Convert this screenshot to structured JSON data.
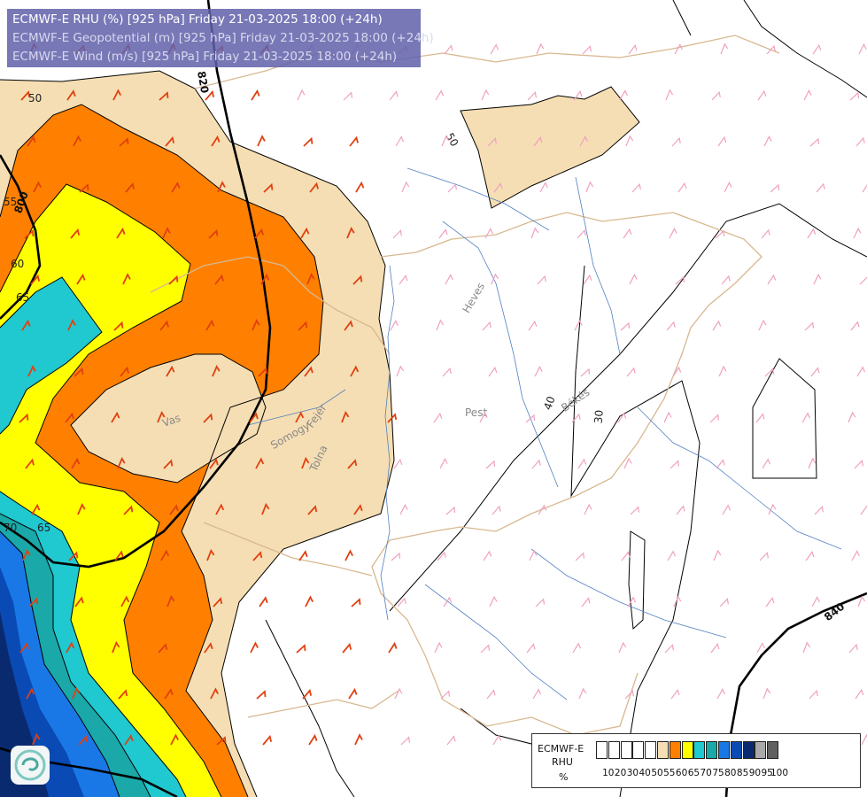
{
  "header": {
    "line1": "ECMWF-E RHU (%) [925 hPa] Friday 21-03-2025 18:00 (+24h)",
    "line2": "ECMWF-E Geopotential (m) [925 hPa] Friday 21-03-2025 18:00 (+24h)",
    "line3": "ECMWF-E Wind (m/s) [925 hPa] Friday 21-03-2025 18:00 (+24h)"
  },
  "legend": {
    "title1": "ECMWF-E",
    "title2": "RHU",
    "unit": "%",
    "ticks": [
      "10",
      "20",
      "30",
      "40",
      "50",
      "55",
      "60",
      "65",
      "70",
      "75",
      "80",
      "85",
      "90",
      "95",
      "100"
    ],
    "colors": [
      "#ffffff",
      "#ffffff",
      "#ffffff",
      "#ffffff",
      "#ffffff",
      "#f5deb3",
      "#ff8000",
      "#ffff00",
      "#20c8d0",
      "#1aa8a8",
      "#1a78e6",
      "#0a4ab4",
      "#0a2a70",
      "#aaaaaa",
      "#606060"
    ]
  },
  "places": {
    "heves": "Heves",
    "pest": "Pest",
    "bekes": "Békés",
    "vas": "Vas",
    "somogy": "Somogy",
    "fejer": "Fejér",
    "tolna": "Tolna"
  },
  "isolines": {
    "rhu": [
      "50",
      "55",
      "60",
      "65",
      "70",
      "65",
      "50",
      "40",
      "30"
    ],
    "geopotential": [
      "800",
      "820",
      "840"
    ]
  },
  "colors": {
    "wheat": "#f5deb3",
    "orange": "#ff8000",
    "yellow": "#ffff00",
    "cyan": "#20c8d0",
    "teal": "#1aa8a8",
    "blue": "#1a78e6",
    "darkblue": "#0a4ab4",
    "navy": "#0a2a70",
    "border": "#d8b890",
    "river": "#5080c0",
    "barb_red": "#e04010",
    "barb_pink": "#f0a0c0"
  },
  "logo": {
    "icon": "ecmwf-swirl-icon"
  }
}
